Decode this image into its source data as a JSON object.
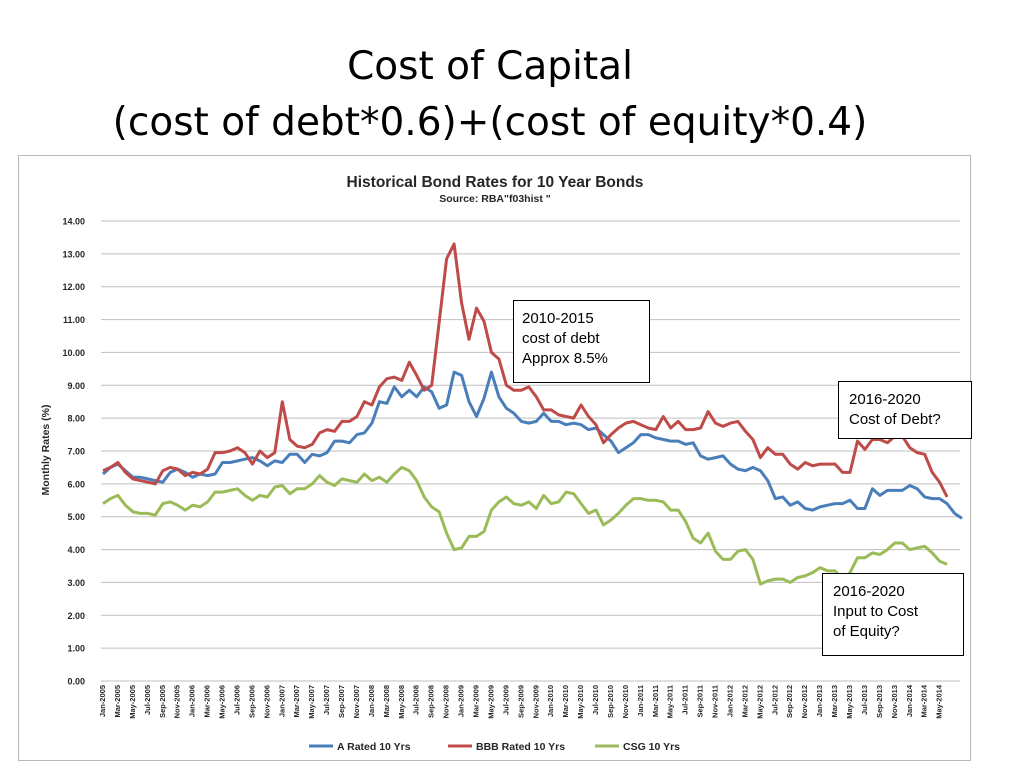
{
  "slide": {
    "title_line1": "Cost of Capital",
    "title_line2": "(cost of debt*0.6)+(cost of equity*0.4)"
  },
  "annotations": [
    {
      "lines": [
        "2010-2015",
        "cost of debt",
        "Approx 8.5%"
      ]
    },
    {
      "lines": [
        "2016-2020",
        "Cost of Debt?"
      ]
    },
    {
      "lines": [
        "2016-2020",
        "Input to Cost",
        "of Equity?"
      ]
    }
  ],
  "chart_data": {
    "type": "line",
    "title": "Historical Bond Rates for 10 Year Bonds",
    "subtitle": "Source: RBA\"f03hist \"",
    "xlabel": "",
    "ylabel": "Monthly Rates (%)",
    "ylim": [
      0,
      14
    ],
    "ytick_labels": [
      "0.00",
      "1.00",
      "2.00",
      "3.00",
      "4.00",
      "5.00",
      "6.00",
      "7.00",
      "8.00",
      "9.00",
      "10.00",
      "11.00",
      "12.00",
      "13.00",
      "14.00"
    ],
    "grid": true,
    "legend": "bottom",
    "x_start": "Jan-2005",
    "xtick_labels": [
      "Jan-2005",
      "Mar-2005",
      "May-2005",
      "Jul-2005",
      "Sep-2005",
      "Nov-2005",
      "Jan-2006",
      "Mar-2006",
      "May-2006",
      "Jul-2006",
      "Sep-2006",
      "Nov-2006",
      "Jan-2007",
      "Mar-2007",
      "May-2007",
      "Jul-2007",
      "Sep-2007",
      "Nov-2007",
      "Jan-2008",
      "Mar-2008",
      "May-2008",
      "Jul-2008",
      "Sep-2008",
      "Nov-2008",
      "Jan-2009",
      "Mar-2009",
      "May-2009",
      "Jul-2009",
      "Sep-2009",
      "Nov-2009",
      "Jan-2010",
      "Mar-2010",
      "May-2010",
      "Jul-2010",
      "Sep-2010",
      "Nov-2010",
      "Jan-2011",
      "Mar-2011",
      "May-2011",
      "Jul-2011",
      "Sep-2011",
      "Nov-2011",
      "Jan-2012",
      "Mar-2012",
      "May-2012",
      "Jul-2012",
      "Sep-2012",
      "Nov-2012",
      "Jan-2013",
      "Mar-2013",
      "May-2013",
      "Jul-2013",
      "Sep-2013",
      "Nov-2013",
      "Jan-2014",
      "Mar-2014",
      "May-2014"
    ],
    "series": [
      {
        "name": "A Rated 10 Yrs",
        "color": "#4a7ebb",
        "values": [
          6.3,
          6.5,
          6.6,
          6.4,
          6.2,
          6.2,
          6.15,
          6.1,
          6.05,
          6.35,
          6.45,
          6.35,
          6.2,
          6.3,
          6.25,
          6.3,
          6.65,
          6.65,
          6.7,
          6.75,
          6.8,
          6.7,
          6.55,
          6.7,
          6.65,
          6.9,
          6.9,
          6.65,
          6.9,
          6.85,
          6.95,
          7.3,
          7.3,
          7.25,
          7.5,
          7.55,
          7.85,
          8.5,
          8.45,
          8.95,
          8.65,
          8.85,
          8.65,
          8.95,
          8.8,
          8.3,
          8.4,
          9.4,
          9.3,
          8.5,
          8.05,
          8.6,
          9.4,
          8.65,
          8.3,
          8.15,
          7.9,
          7.85,
          7.9,
          8.15,
          7.9,
          7.9,
          7.8,
          7.85,
          7.8,
          7.65,
          7.7,
          7.5,
          7.3,
          6.95,
          7.1,
          7.25,
          7.5,
          7.5,
          7.4,
          7.35,
          7.3,
          7.3,
          7.2,
          7.25,
          6.85,
          6.75,
          6.8,
          6.85,
          6.6,
          6.45,
          6.4,
          6.5,
          6.4,
          6.1,
          5.55,
          5.6,
          5.35,
          5.45,
          5.25,
          5.2,
          5.3,
          5.35,
          5.4,
          5.4,
          5.5,
          5.25,
          5.25,
          5.85,
          5.65,
          5.8,
          5.8,
          5.8,
          5.95,
          5.85,
          5.6,
          5.55,
          5.55,
          5.4,
          5.1,
          4.95
        ]
      },
      {
        "name": "BBB Rated 10 Yrs",
        "color": "#be4b48",
        "values": [
          6.4,
          6.5,
          6.65,
          6.35,
          6.15,
          6.1,
          6.05,
          6.0,
          6.4,
          6.5,
          6.45,
          6.25,
          6.35,
          6.3,
          6.45,
          6.95,
          6.95,
          7.0,
          7.1,
          6.95,
          6.6,
          7.0,
          6.8,
          6.95,
          8.5,
          7.35,
          7.15,
          7.1,
          7.2,
          7.55,
          7.65,
          7.6,
          7.9,
          7.9,
          8.05,
          8.5,
          8.4,
          8.95,
          9.2,
          9.25,
          9.15,
          9.7,
          9.3,
          8.85,
          9.0,
          10.9,
          12.85,
          13.3,
          11.5,
          10.4,
          11.35,
          10.95,
          10.0,
          9.8,
          9.0,
          8.85,
          8.85,
          8.95,
          8.65,
          8.25,
          8.25,
          8.1,
          8.05,
          8.0,
          8.4,
          8.05,
          7.8,
          7.25,
          7.5,
          7.7,
          7.85,
          7.9,
          7.8,
          7.7,
          7.65,
          8.05,
          7.7,
          7.9,
          7.65,
          7.65,
          7.7,
          8.2,
          7.85,
          7.75,
          7.85,
          7.9,
          7.6,
          7.35,
          6.8,
          7.1,
          6.9,
          6.9,
          6.6,
          6.45,
          6.65,
          6.55,
          6.6,
          6.6,
          6.6,
          6.35,
          6.35,
          7.3,
          7.05,
          7.35,
          7.35,
          7.25,
          7.45,
          7.45,
          7.1,
          6.95,
          6.9,
          6.35,
          6.05,
          5.6
        ]
      },
      {
        "name": "CSG 10 Yrs",
        "color": "#9bbb59",
        "values": [
          5.4,
          5.55,
          5.65,
          5.35,
          5.15,
          5.1,
          5.1,
          5.05,
          5.4,
          5.45,
          5.35,
          5.2,
          5.35,
          5.3,
          5.45,
          5.75,
          5.75,
          5.8,
          5.85,
          5.65,
          5.5,
          5.65,
          5.6,
          5.9,
          5.95,
          5.7,
          5.85,
          5.85,
          6.0,
          6.25,
          6.05,
          5.95,
          6.15,
          6.1,
          6.05,
          6.3,
          6.1,
          6.2,
          6.05,
          6.3,
          6.5,
          6.4,
          6.1,
          5.6,
          5.3,
          5.15,
          4.5,
          4.0,
          4.05,
          4.4,
          4.4,
          4.55,
          5.2,
          5.45,
          5.6,
          5.4,
          5.35,
          5.45,
          5.25,
          5.65,
          5.4,
          5.45,
          5.75,
          5.7,
          5.4,
          5.1,
          5.2,
          4.75,
          4.9,
          5.1,
          5.35,
          5.55,
          5.55,
          5.5,
          5.5,
          5.45,
          5.2,
          5.2,
          4.85,
          4.35,
          4.2,
          4.5,
          3.95,
          3.7,
          3.7,
          3.95,
          4.0,
          3.7,
          2.95,
          3.05,
          3.1,
          3.1,
          3.0,
          3.15,
          3.2,
          3.3,
          3.45,
          3.35,
          3.35,
          3.1,
          3.3,
          3.75,
          3.75,
          3.9,
          3.85,
          4.0,
          4.2,
          4.2,
          4.0,
          4.05,
          4.1,
          3.9,
          3.65,
          3.55
        ]
      }
    ]
  }
}
